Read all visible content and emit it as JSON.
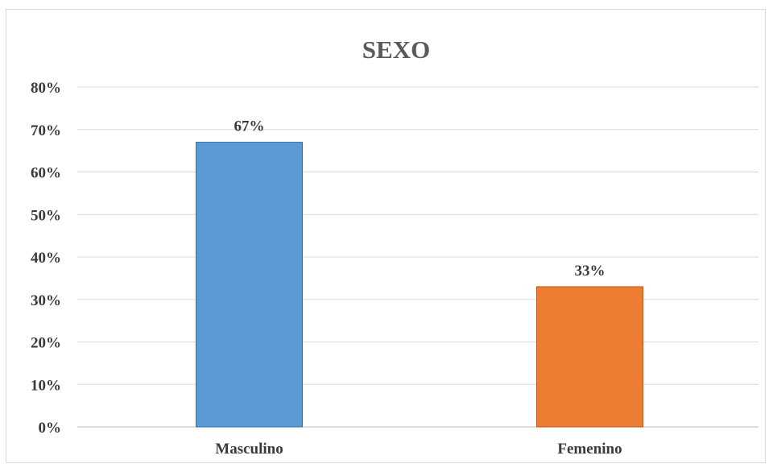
{
  "chart_data": {
    "type": "bar",
    "title": "SEXO",
    "xlabel": "",
    "ylabel": "",
    "categories": [
      "Masculino",
      "Femenino"
    ],
    "values": [
      0.67,
      0.33
    ],
    "data_labels": [
      "67%",
      "33%"
    ],
    "colors": [
      "#5b9bd5",
      "#ed7d31"
    ],
    "border_colors": [
      "#2f6fb0",
      "#c0561a"
    ],
    "ylim": [
      0,
      0.8
    ],
    "yticks": [
      0,
      0.1,
      0.2,
      0.3,
      0.4,
      0.5,
      0.6,
      0.7,
      0.8
    ],
    "ytick_labels": [
      "0%",
      "10%",
      "20%",
      "30%",
      "40%",
      "50%",
      "60%",
      "70%",
      "80%"
    ],
    "grid": true,
    "legend": "none"
  }
}
